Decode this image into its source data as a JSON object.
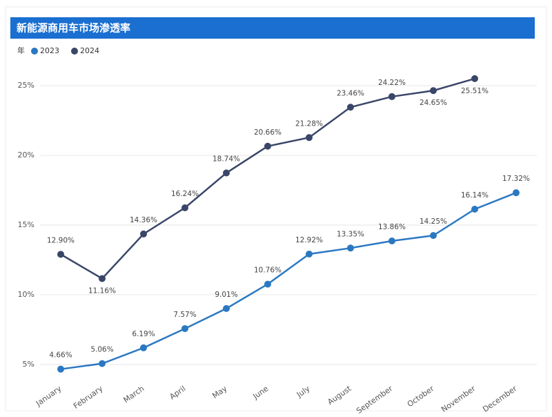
{
  "chart_data": {
    "type": "line",
    "title": "新能源商用车市场渗透率",
    "legend_title": "年",
    "categories": [
      "January",
      "February",
      "March",
      "April",
      "May",
      "June",
      "July",
      "August",
      "September",
      "October",
      "November",
      "December"
    ],
    "series": [
      {
        "name": "2023",
        "color": "#2b78c2",
        "values": [
          4.66,
          5.06,
          6.19,
          7.57,
          9.01,
          10.76,
          12.92,
          13.35,
          13.86,
          14.25,
          16.14,
          17.32
        ],
        "value_labels": [
          "4.66%",
          "5.06%",
          "6.19%",
          "7.57%",
          "9.01%",
          "10.76%",
          "12.92%",
          "13.35%",
          "13.86%",
          "14.25%",
          "16.14%",
          "17.32%"
        ]
      },
      {
        "name": "2024",
        "color": "#3a4668",
        "values": [
          12.9,
          11.16,
          14.36,
          16.24,
          18.74,
          20.66,
          21.28,
          23.46,
          24.22,
          24.65,
          25.51,
          null
        ],
        "value_labels": [
          "12.90%",
          "11.16%",
          "14.36%",
          "16.24%",
          "18.74%",
          "20.66%",
          "21.28%",
          "23.46%",
          "24.22%",
          "24.65%",
          "25.51%",
          null
        ]
      }
    ],
    "ylim": [
      4,
      26
    ],
    "yticks": [
      {
        "value": 5,
        "label": "5%"
      },
      {
        "value": 10,
        "label": "10%"
      },
      {
        "value": 15,
        "label": "15%"
      },
      {
        "value": 20,
        "label": "20%"
      },
      {
        "value": 25,
        "label": "25%"
      }
    ],
    "grid": true
  }
}
